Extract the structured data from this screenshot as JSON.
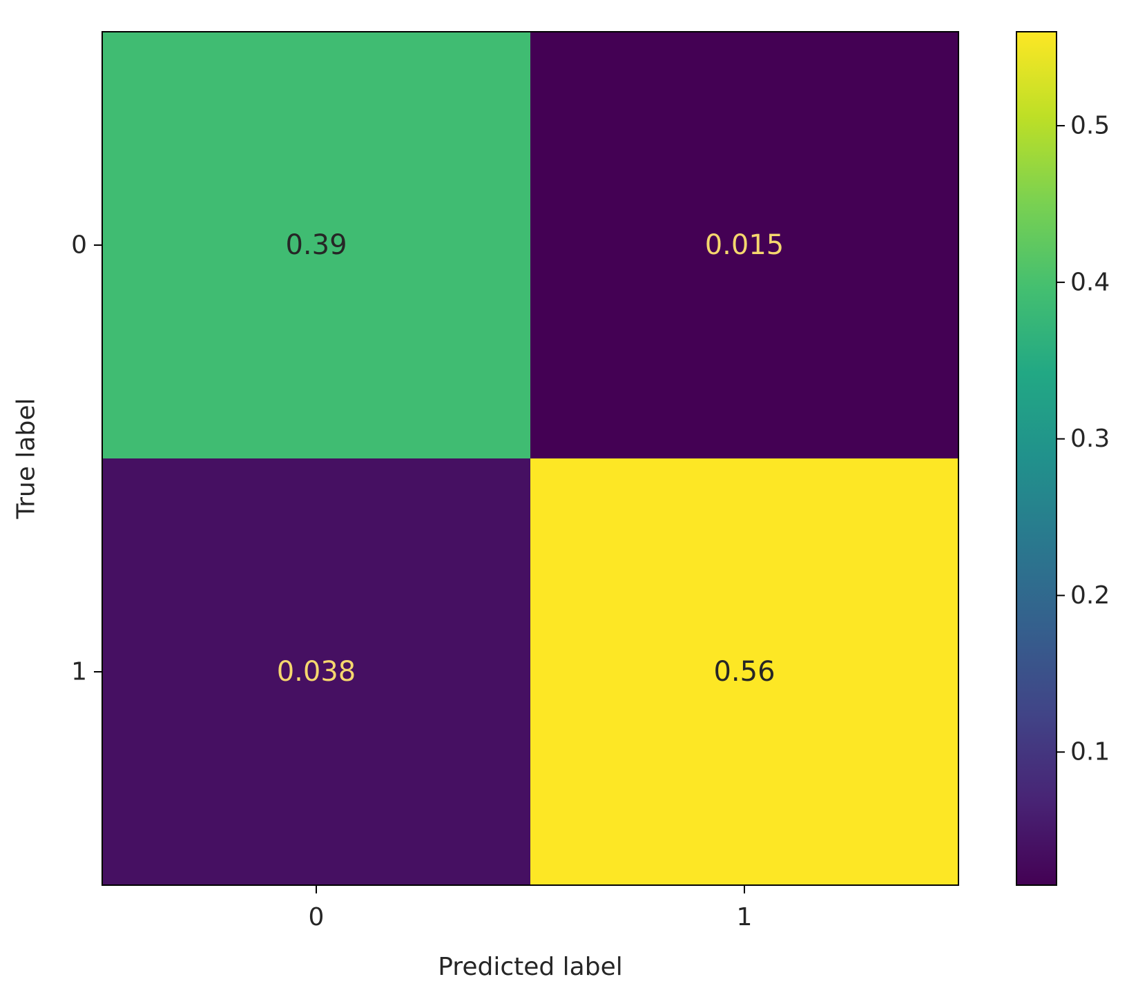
{
  "chart_data": {
    "type": "heatmap",
    "title": "",
    "xlabel": "Predicted label",
    "ylabel": "True label",
    "x_categories": [
      "0",
      "1"
    ],
    "y_categories": [
      "0",
      "1"
    ],
    "matrix": [
      [
        0.39,
        0.015
      ],
      [
        0.038,
        0.56
      ]
    ],
    "cell_labels": [
      [
        "0.39",
        "0.015"
      ],
      [
        "0.038",
        "0.56"
      ]
    ],
    "colormap": "viridis",
    "colorbar": {
      "range": [
        0.015,
        0.56
      ],
      "ticks": [
        0.1,
        0.2,
        0.3,
        0.4,
        0.5
      ],
      "tick_labels": [
        "0.1",
        "0.2",
        "0.3",
        "0.4",
        "0.5"
      ]
    },
    "grid": false
  },
  "colors": {
    "dark_text": "#262626",
    "light_text": "#f5d76e",
    "axis": "#000000"
  }
}
